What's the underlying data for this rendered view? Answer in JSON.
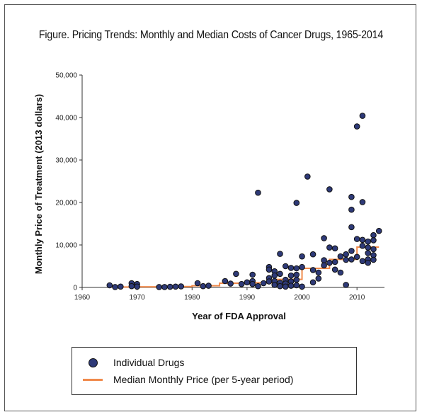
{
  "figure": {
    "title": "Figure. Pricing Trends: Monthly and Median Costs of Cancer Drugs, 1965-2014"
  },
  "colors": {
    "dot_fill": "#2e3a78",
    "dot_stroke": "#111111",
    "median_line": "#f08a4b",
    "axis": "#333333"
  },
  "legend": {
    "items": [
      {
        "label": "Individual Drugs",
        "symbol": "dot-icon"
      },
      {
        "label": "Median Monthly Price (per 5-year period)",
        "symbol": "line-icon"
      }
    ]
  },
  "chart_data": {
    "type": "scatter",
    "xlabel": "Year of FDA Approval",
    "ylabel": "Monthly Price of Treatment (2013 dollars)",
    "xlim": [
      1960,
      2015
    ],
    "ylim": [
      0,
      50000
    ],
    "xticks": [
      1960,
      1970,
      1980,
      1990,
      2000,
      2010
    ],
    "xtick_labels": [
      "1960",
      "1970",
      "1980",
      "1990",
      "2000",
      "2010"
    ],
    "yticks": [
      0,
      10000,
      20000,
      30000,
      40000,
      50000
    ],
    "ytick_labels": [
      "0",
      "10,000",
      "20,000",
      "30,000",
      "40,000",
      "50,000"
    ],
    "grid": false,
    "legend_position": "bottom",
    "series": [
      {
        "name": "Individual Drugs",
        "points": [
          [
            1965,
            500
          ],
          [
            1966,
            100
          ],
          [
            1967,
            200
          ],
          [
            1969,
            1000
          ],
          [
            1969,
            300
          ],
          [
            1970,
            800
          ],
          [
            1970,
            200
          ],
          [
            1974,
            100
          ],
          [
            1975,
            100
          ],
          [
            1976,
            150
          ],
          [
            1977,
            200
          ],
          [
            1978,
            250
          ],
          [
            1981,
            1000
          ],
          [
            1982,
            300
          ],
          [
            1983,
            400
          ],
          [
            1986,
            1500
          ],
          [
            1987,
            900
          ],
          [
            1988,
            3200
          ],
          [
            1989,
            800
          ],
          [
            1990,
            1200
          ],
          [
            1991,
            3000
          ],
          [
            1991,
            1500
          ],
          [
            1991,
            800
          ],
          [
            1992,
            22300
          ],
          [
            1992,
            300
          ],
          [
            1993,
            1000
          ],
          [
            1994,
            4800
          ],
          [
            1994,
            4200
          ],
          [
            1994,
            2200
          ],
          [
            1994,
            1400
          ],
          [
            1995,
            3800
          ],
          [
            1995,
            2800
          ],
          [
            1995,
            1500
          ],
          [
            1995,
            600
          ],
          [
            1996,
            7900
          ],
          [
            1996,
            3200
          ],
          [
            1996,
            1100
          ],
          [
            1996,
            300
          ],
          [
            1997,
            5000
          ],
          [
            1997,
            1800
          ],
          [
            1997,
            900
          ],
          [
            1997,
            200
          ],
          [
            1998,
            4600
          ],
          [
            1998,
            2800
          ],
          [
            1998,
            1400
          ],
          [
            1998,
            400
          ],
          [
            1999,
            19900
          ],
          [
            1999,
            4500
          ],
          [
            1999,
            3000
          ],
          [
            1999,
            1800
          ],
          [
            1999,
            500
          ],
          [
            2000,
            7300
          ],
          [
            2000,
            4800
          ],
          [
            2000,
            200
          ],
          [
            2001,
            26100
          ],
          [
            2002,
            7800
          ],
          [
            2002,
            4100
          ],
          [
            2002,
            1200
          ],
          [
            2003,
            3500
          ],
          [
            2003,
            2100
          ],
          [
            2004,
            11600
          ],
          [
            2004,
            6400
          ],
          [
            2004,
            5200
          ],
          [
            2005,
            23100
          ],
          [
            2005,
            9400
          ],
          [
            2005,
            5800
          ],
          [
            2006,
            9200
          ],
          [
            2006,
            6000
          ],
          [
            2006,
            4200
          ],
          [
            2007,
            7300
          ],
          [
            2007,
            3500
          ],
          [
            2008,
            7800
          ],
          [
            2008,
            6500
          ],
          [
            2008,
            600
          ],
          [
            2009,
            21300
          ],
          [
            2009,
            18300
          ],
          [
            2009,
            14200
          ],
          [
            2009,
            8600
          ],
          [
            2009,
            6600
          ],
          [
            2010,
            37900
          ],
          [
            2010,
            11400
          ],
          [
            2010,
            7200
          ],
          [
            2011,
            40400
          ],
          [
            2011,
            20100
          ],
          [
            2011,
            11200
          ],
          [
            2011,
            9800
          ],
          [
            2011,
            6200
          ],
          [
            2012,
            10800
          ],
          [
            2012,
            9400
          ],
          [
            2012,
            8100
          ],
          [
            2012,
            6600
          ],
          [
            2012,
            5800
          ],
          [
            2013,
            12300
          ],
          [
            2013,
            11100
          ],
          [
            2013,
            9000
          ],
          [
            2013,
            7600
          ],
          [
            2013,
            6500
          ],
          [
            2014,
            13300
          ]
        ]
      },
      {
        "name": "Median Monthly Price (per 5-year period)",
        "type": "step",
        "x": [
          1965,
          1970,
          1975,
          1980,
          1985,
          1990,
          1995,
          2000,
          2005,
          2010,
          2014
        ],
        "y": [
          100,
          150,
          200,
          400,
          1000,
          1100,
          1900,
          4500,
          6600,
          9500,
          9500
        ]
      }
    ]
  }
}
